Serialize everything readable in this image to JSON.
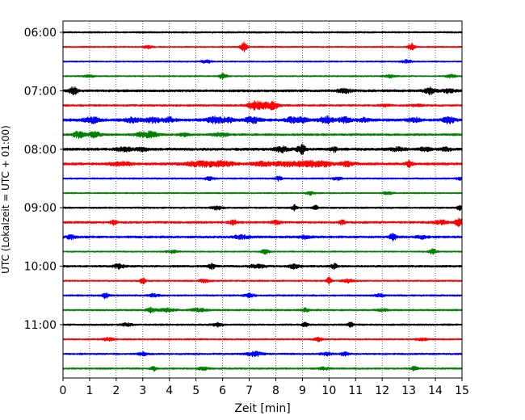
{
  "chart_data": {
    "type": "line",
    "title": "",
    "xlabel": "Zeit  [min]",
    "ylabel": "UTC (Lokalzeit = UTC + 01:00)",
    "xlim": [
      0,
      15
    ],
    "x_ticks": [
      0,
      1,
      2,
      3,
      4,
      5,
      6,
      7,
      8,
      9,
      10,
      11,
      12,
      13,
      14,
      15
    ],
    "x_tick_labels": [
      "0",
      "1",
      "2",
      "3",
      "4",
      "5",
      "6",
      "7",
      "8",
      "9",
      "10",
      "11",
      "12",
      "13",
      "14",
      "15"
    ],
    "y_tick_labels": [
      "06:00",
      "07:00",
      "08:00",
      "09:00",
      "10:00",
      "11:00"
    ],
    "y_tick_trace_index": [
      0,
      4,
      8,
      12,
      16,
      20
    ],
    "grid": "vertical dotted at each minute",
    "legend": "none",
    "trace_colors": [
      "#000000",
      "#ff0000",
      "#0000ff",
      "#008000"
    ],
    "traces": [
      {
        "label": "06:00",
        "color": "#000000",
        "noise": 0.45,
        "events": []
      },
      {
        "label": "06:15",
        "color": "#ff0000",
        "noise": 0.35,
        "events": [
          [
            3.2,
            0.9,
            0.15
          ],
          [
            6.8,
            2.6,
            0.12
          ],
          [
            13.1,
            2.0,
            0.12
          ]
        ]
      },
      {
        "label": "06:30",
        "color": "#0000ff",
        "noise": 0.35,
        "events": [
          [
            5.4,
            0.8,
            0.2
          ],
          [
            12.9,
            0.8,
            0.2
          ]
        ]
      },
      {
        "label": "06:45",
        "color": "#008000",
        "noise": 0.35,
        "events": [
          [
            6.0,
            1.6,
            0.15
          ],
          [
            1.0,
            0.7,
            0.2
          ],
          [
            12.3,
            0.7,
            0.2
          ],
          [
            14.6,
            0.7,
            0.2
          ]
        ]
      },
      {
        "label": "07:00",
        "color": "#000000",
        "noise": 0.65,
        "events": [
          [
            0.4,
            2.0,
            0.15
          ],
          [
            10.6,
            0.9,
            0.3
          ],
          [
            13.8,
            1.8,
            0.2
          ],
          [
            14.5,
            0.9,
            0.25
          ]
        ]
      },
      {
        "label": "07:15",
        "color": "#ff0000",
        "noise": 0.5,
        "events": [
          [
            7.2,
            1.5,
            0.3
          ],
          [
            7.9,
            1.6,
            0.2
          ],
          [
            7.5,
            1.2,
            0.4
          ],
          [
            12.1,
            0.7,
            0.2
          ],
          [
            13.3,
            0.6,
            0.2
          ]
        ]
      },
      {
        "label": "07:30",
        "color": "#0000ff",
        "noise": 0.75,
        "events": [
          [
            1.1,
            1.3,
            0.3
          ],
          [
            2.6,
            1.2,
            0.3
          ],
          [
            3.4,
            1.3,
            0.3
          ],
          [
            4.0,
            1.2,
            0.2
          ],
          [
            5.7,
            1.5,
            0.3
          ],
          [
            6.2,
            1.1,
            0.2
          ],
          [
            7.1,
            1.4,
            0.3
          ],
          [
            8.6,
            1.3,
            0.2
          ],
          [
            9.0,
            1.2,
            0.2
          ],
          [
            9.9,
            1.7,
            0.25
          ],
          [
            10.6,
            1.5,
            0.2
          ],
          [
            11.3,
            1.0,
            0.2
          ],
          [
            13.2,
            1.2,
            0.2
          ],
          [
            14.5,
            1.8,
            0.2
          ]
        ]
      },
      {
        "label": "07:45",
        "color": "#008000",
        "noise": 0.55,
        "events": [
          [
            0.6,
            1.7,
            0.2
          ],
          [
            1.2,
            1.8,
            0.2
          ],
          [
            3.3,
            1.7,
            0.25
          ],
          [
            2.9,
            1.1,
            0.2
          ],
          [
            4.5,
            0.9,
            0.2
          ],
          [
            5.9,
            0.9,
            0.3
          ]
        ]
      },
      {
        "label": "08:00",
        "color": "#000000",
        "noise": 0.7,
        "events": [
          [
            2.3,
            1.1,
            0.3
          ],
          [
            3.0,
            0.9,
            0.2
          ],
          [
            8.2,
            1.4,
            0.25
          ],
          [
            8.9,
            1.0,
            0.2
          ],
          [
            9.0,
            1.6,
            0.12
          ],
          [
            10.2,
            1.3,
            0.12
          ],
          [
            12.6,
            1.0,
            0.3
          ],
          [
            13.6,
            1.0,
            0.2
          ],
          [
            14.4,
            0.8,
            0.2
          ]
        ]
      },
      {
        "label": "08:15",
        "color": "#ff0000",
        "noise": 0.65,
        "events": [
          [
            2.2,
            0.9,
            0.4
          ],
          [
            5.2,
            1.3,
            0.6
          ],
          [
            6.0,
            1.2,
            0.4
          ],
          [
            7.5,
            1.1,
            0.4
          ],
          [
            8.4,
            1.2,
            0.4
          ],
          [
            9.2,
            1.6,
            0.35
          ],
          [
            9.8,
            1.3,
            0.3
          ],
          [
            10.7,
            1.2,
            0.3
          ],
          [
            13.0,
            1.5,
            0.12
          ]
        ]
      },
      {
        "label": "08:30",
        "color": "#0000ff",
        "noise": 0.45,
        "events": [
          [
            5.5,
            0.9,
            0.15
          ],
          [
            8.1,
            1.2,
            0.12
          ],
          [
            10.3,
            1.0,
            0.15
          ],
          [
            14.9,
            0.8,
            0.1
          ]
        ]
      },
      {
        "label": "08:45",
        "color": "#008000",
        "noise": 0.35,
        "events": [
          [
            9.3,
            0.9,
            0.15
          ],
          [
            12.2,
            0.6,
            0.2
          ]
        ]
      },
      {
        "label": "09:00",
        "color": "#000000",
        "noise": 0.45,
        "events": [
          [
            5.8,
            0.9,
            0.2
          ],
          [
            8.7,
            1.4,
            0.1
          ],
          [
            9.5,
            1.1,
            0.1
          ],
          [
            14.9,
            1.2,
            0.1
          ]
        ]
      },
      {
        "label": "09:15",
        "color": "#ff0000",
        "noise": 0.55,
        "events": [
          [
            1.9,
            1.3,
            0.12
          ],
          [
            6.4,
            1.2,
            0.15
          ],
          [
            8.0,
            0.9,
            0.2
          ],
          [
            10.5,
            1.1,
            0.12
          ],
          [
            14.2,
            1.0,
            0.3
          ],
          [
            14.9,
            2.0,
            0.2
          ]
        ]
      },
      {
        "label": "09:30",
        "color": "#0000ff",
        "noise": 0.6,
        "events": [
          [
            0.3,
            0.9,
            0.2
          ],
          [
            6.7,
            0.9,
            0.3
          ],
          [
            9.1,
            0.8,
            0.2
          ],
          [
            12.4,
            1.8,
            0.12
          ],
          [
            13.5,
            0.8,
            0.2
          ]
        ]
      },
      {
        "label": "09:45",
        "color": "#008000",
        "noise": 0.35,
        "events": [
          [
            4.1,
            0.9,
            0.2
          ],
          [
            7.6,
            1.2,
            0.15
          ],
          [
            13.9,
            1.5,
            0.15
          ]
        ]
      },
      {
        "label": "10:00",
        "color": "#000000",
        "noise": 0.55,
        "events": [
          [
            2.1,
            1.1,
            0.2
          ],
          [
            5.6,
            1.4,
            0.12
          ],
          [
            7.3,
            1.0,
            0.3
          ],
          [
            8.7,
            1.2,
            0.2
          ],
          [
            10.2,
            1.4,
            0.12
          ]
        ]
      },
      {
        "label": "10:15",
        "color": "#ff0000",
        "noise": 0.4,
        "events": [
          [
            3.0,
            1.7,
            0.1
          ],
          [
            5.3,
            0.8,
            0.2
          ],
          [
            10.0,
            1.7,
            0.1
          ],
          [
            10.7,
            0.9,
            0.2
          ]
        ]
      },
      {
        "label": "10:30",
        "color": "#0000ff",
        "noise": 0.45,
        "events": [
          [
            1.6,
            1.6,
            0.12
          ],
          [
            3.4,
            0.8,
            0.2
          ],
          [
            7.0,
            0.8,
            0.2
          ],
          [
            11.9,
            0.7,
            0.2
          ]
        ]
      },
      {
        "label": "10:45",
        "color": "#008000",
        "noise": 0.45,
        "events": [
          [
            3.3,
            1.2,
            0.15
          ],
          [
            3.9,
            0.9,
            0.3
          ],
          [
            5.1,
            0.8,
            0.3
          ],
          [
            9.1,
            1.0,
            0.15
          ],
          [
            12.0,
            0.7,
            0.2
          ]
        ]
      },
      {
        "label": "11:00",
        "color": "#000000",
        "noise": 0.45,
        "events": [
          [
            2.4,
            0.8,
            0.2
          ],
          [
            5.8,
            0.9,
            0.2
          ],
          [
            9.1,
            1.2,
            0.1
          ],
          [
            10.8,
            1.4,
            0.1
          ]
        ]
      },
      {
        "label": "11:15",
        "color": "#ff0000",
        "noise": 0.4,
        "events": [
          [
            1.7,
            0.8,
            0.2
          ],
          [
            9.6,
            1.0,
            0.15
          ],
          [
            13.5,
            0.6,
            0.2
          ]
        ]
      },
      {
        "label": "11:30",
        "color": "#0000ff",
        "noise": 0.45,
        "events": [
          [
            3.0,
            0.8,
            0.2
          ],
          [
            7.2,
            1.2,
            0.3
          ],
          [
            9.9,
            0.8,
            0.2
          ],
          [
            10.6,
            0.9,
            0.15
          ]
        ]
      },
      {
        "label": "11:45",
        "color": "#008000",
        "noise": 0.45,
        "events": [
          [
            3.4,
            1.2,
            0.1
          ],
          [
            5.3,
            0.8,
            0.2
          ],
          [
            9.8,
            0.8,
            0.2
          ],
          [
            13.2,
            1.6,
            0.12
          ]
        ]
      }
    ]
  }
}
